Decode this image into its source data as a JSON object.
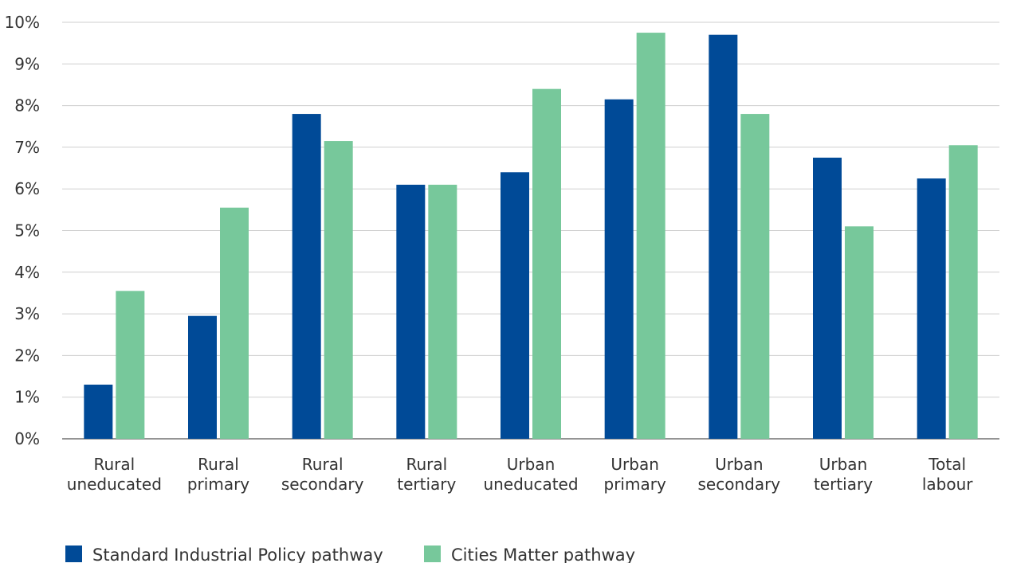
{
  "chart_data": {
    "type": "bar",
    "title": "",
    "xlabel": "",
    "ylabel": "",
    "ylim": [
      0,
      10
    ],
    "y_tick_values": [
      0,
      1,
      2,
      3,
      4,
      5,
      6,
      7,
      8,
      9,
      10
    ],
    "y_tick_labels": [
      "0%",
      "1%",
      "2%",
      "3%",
      "4%",
      "5%",
      "6%",
      "7%",
      "8%",
      "9%",
      "10%"
    ],
    "categories": [
      [
        "Rural",
        "uneducated"
      ],
      [
        "Rural",
        "primary"
      ],
      [
        "Rural",
        "secondary"
      ],
      [
        "Rural",
        "tertiary"
      ],
      [
        "Urban",
        "uneducated"
      ],
      [
        "Urban",
        "primary"
      ],
      [
        "Urban",
        "secondary"
      ],
      [
        "Urban",
        "tertiary"
      ],
      [
        "Total",
        "labour"
      ]
    ],
    "series": [
      {
        "name": "Standard Industrial Policy pathway",
        "color": "#004a97",
        "values": [
          1.3,
          2.95,
          7.8,
          6.1,
          6.4,
          8.15,
          9.7,
          6.75,
          6.25
        ]
      },
      {
        "name": "Cities Matter pathway",
        "color": "#77c89b",
        "values": [
          3.55,
          5.55,
          7.15,
          6.1,
          8.4,
          9.75,
          7.8,
          5.1,
          7.05
        ]
      }
    ],
    "grid": true,
    "legend_position": "bottom-left"
  }
}
